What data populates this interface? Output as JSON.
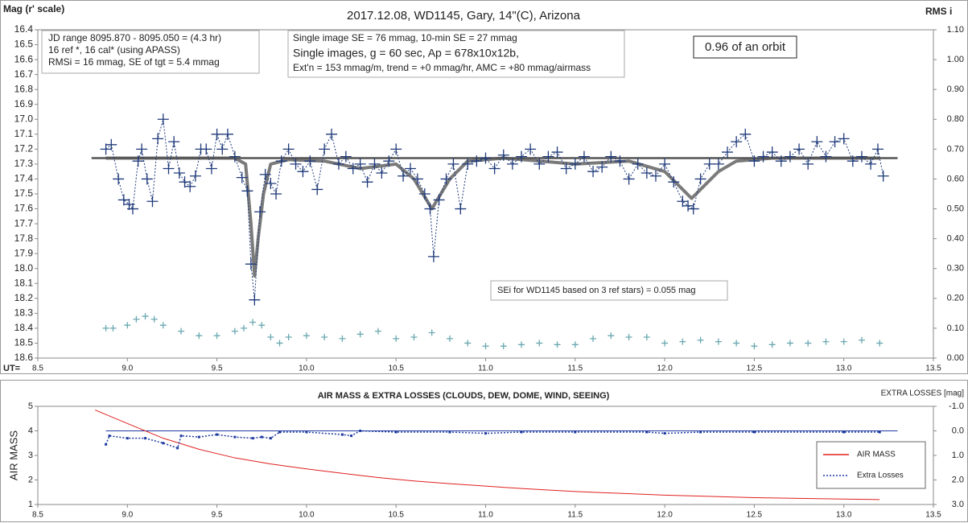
{
  "chart_data": [
    {
      "type": "line",
      "title": "2017.12.08,  WD1145, Gary, 14\"(C), Arizona",
      "y_label": "Mag (r' scale)",
      "y2_label": "RMS i",
      "x_label": "UT=",
      "xlim": [
        8.5,
        13.5
      ],
      "xticks": [
        8.5,
        {
          "value": 9,
          "label": "9.0"
        },
        9.5,
        {
          "value": 10,
          "label": "10.0"
        },
        10.5,
        {
          "value": 11,
          "label": "11.0"
        },
        11.5,
        {
          "value": 12,
          "label": "12.0"
        },
        12.5,
        {
          "value": 13,
          "label": "13.0"
        },
        13.5
      ],
      "ylim": [
        16.4,
        18.6
      ],
      "y_inverted": true,
      "yticks": [
        16.4,
        16.5,
        16.6,
        16.7,
        16.8,
        16.9,
        {
          "value": 17,
          "label": "17.0"
        },
        17.1,
        17.2,
        17.3,
        17.4,
        17.5,
        17.6,
        17.7,
        17.8,
        17.9,
        {
          "value": 18,
          "label": "18.0"
        },
        18.1,
        18.2,
        18.3,
        18.4,
        18.5,
        18.6
      ],
      "y2lim": [
        0,
        1.1
      ],
      "y2ticks": [
        {
          "value": 0,
          "label": "0.00"
        },
        {
          "value": 0.1,
          "label": "0.10"
        },
        {
          "value": 0.2,
          "label": "0.20"
        },
        {
          "value": 0.3,
          "label": "0.30"
        },
        {
          "value": 0.4,
          "label": "0.40"
        },
        {
          "value": 0.5,
          "label": "0.50"
        },
        {
          "value": 0.6,
          "label": "0.60"
        },
        {
          "value": 0.7,
          "label": "0.70"
        },
        {
          "value": 0.8,
          "label": "0.80"
        },
        {
          "value": 0.9,
          "label": "0.90"
        },
        {
          "value": 1,
          "label": "1.00"
        },
        {
          "value": 1.1,
          "label": "1.10"
        }
      ],
      "annotations": {
        "info": [
          "JD range  8095.870 - 8095.050  = (4.3 hr)",
          "16 ref *, 16 cal* (using APASS)",
          "RMSi = 16 mmag, SE of tgt = 5.4 mmag"
        ],
        "settings": [
          "Single image SE = 76 mmag, 10-min SE = 27 mmag",
          "Single images, g = 60 sec, Ap = 678x10x12b,",
          "Ext'n = 153 mmag/m, trend = +0 mmag/hr, AMC = +80 mmag/airmass"
        ],
        "orbit": "0.96 of an orbit",
        "sei": "SEi for WD1145 based on 3 ref stars) = 0.055 mag"
      },
      "series": [
        {
          "color": "#7a7a7a",
          "line_style": "solid",
          "line_width": 4,
          "x": [
            8.88,
            9.6,
            9.66,
            9.69,
            9.71,
            9.73,
            9.76,
            9.8,
            9.9,
            10.1,
            10.3,
            10.5,
            10.6,
            10.7,
            10.8,
            10.9,
            11.1,
            11.5,
            11.8,
            12.0,
            12.15,
            12.3,
            12.4,
            12.6,
            13.2
          ],
          "values": [
            17.26,
            17.26,
            17.3,
            17.7,
            18.05,
            17.8,
            17.5,
            17.3,
            17.27,
            17.28,
            17.33,
            17.3,
            17.4,
            17.6,
            17.4,
            17.28,
            17.26,
            17.3,
            17.28,
            17.35,
            17.53,
            17.35,
            17.28,
            17.26,
            17.26
          ]
        },
        {
          "color": "#555555",
          "line_style": "solid",
          "line_width": 2.5,
          "x": [
            8.8,
            13.3
          ],
          "values": [
            17.26,
            17.26
          ]
        },
        {
          "color": "#1f3a7a",
          "line_style": "dotted",
          "line_width": 1,
          "marker": "cross",
          "x": [
            8.88,
            8.91,
            8.95,
            8.98,
            9.01,
            9.03,
            9.06,
            9.08,
            9.11,
            9.14,
            9.17,
            9.2,
            9.23,
            9.26,
            9.29,
            9.32,
            9.35,
            9.38,
            9.41,
            9.44,
            9.47,
            9.5,
            9.53,
            9.56,
            9.6,
            9.64,
            9.67,
            9.69,
            9.71,
            9.74,
            9.77,
            9.8,
            9.83,
            9.86,
            9.9,
            9.94,
            9.98,
            10.02,
            10.06,
            10.1,
            10.14,
            10.18,
            10.22,
            10.26,
            10.3,
            10.34,
            10.38,
            10.42,
            10.46,
            10.5,
            10.54,
            10.58,
            10.62,
            10.66,
            10.69,
            10.71,
            10.74,
            10.78,
            10.82,
            10.86,
            10.9,
            10.95,
            11.0,
            11.05,
            11.1,
            11.15,
            11.2,
            11.25,
            11.3,
            11.35,
            11.4,
            11.45,
            11.5,
            11.55,
            11.6,
            11.65,
            11.7,
            11.75,
            11.8,
            11.85,
            11.9,
            11.95,
            12.0,
            12.05,
            12.1,
            12.13,
            12.16,
            12.2,
            12.25,
            12.3,
            12.35,
            12.4,
            12.45,
            12.5,
            12.55,
            12.6,
            12.65,
            12.7,
            12.75,
            12.8,
            12.85,
            12.9,
            12.95,
            13.0,
            13.05,
            13.1,
            13.15,
            13.19,
            13.22
          ],
          "values": [
            17.2,
            17.17,
            17.4,
            17.54,
            17.57,
            17.6,
            17.28,
            17.2,
            17.4,
            17.55,
            17.13,
            17.0,
            17.33,
            17.15,
            17.36,
            17.42,
            17.45,
            17.38,
            17.2,
            17.2,
            17.33,
            17.1,
            17.2,
            17.1,
            17.25,
            17.39,
            17.48,
            17.97,
            18.21,
            17.62,
            17.37,
            17.43,
            17.5,
            17.28,
            17.2,
            17.3,
            17.35,
            17.28,
            17.47,
            17.2,
            17.1,
            17.3,
            17.25,
            17.33,
            17.3,
            17.42,
            17.3,
            17.36,
            17.28,
            17.2,
            17.38,
            17.33,
            17.4,
            17.5,
            17.6,
            17.92,
            17.54,
            17.4,
            17.3,
            17.6,
            17.3,
            17.28,
            17.26,
            17.33,
            17.24,
            17.3,
            17.25,
            17.2,
            17.3,
            17.25,
            17.22,
            17.33,
            17.3,
            17.25,
            17.35,
            17.32,
            17.25,
            17.28,
            17.4,
            17.3,
            17.36,
            17.38,
            17.3,
            17.42,
            17.55,
            17.58,
            17.6,
            17.4,
            17.3,
            17.3,
            17.22,
            17.15,
            17.1,
            17.28,
            17.25,
            17.22,
            17.28,
            17.25,
            17.2,
            17.3,
            17.15,
            17.25,
            17.15,
            17.13,
            17.28,
            17.25,
            17.3,
            17.2,
            17.38
          ]
        },
        {
          "color": "#6aa8b0",
          "axis": "y2",
          "marker": "plus",
          "x": [
            8.88,
            8.92,
            9.0,
            9.05,
            9.1,
            9.15,
            9.2,
            9.3,
            9.4,
            9.5,
            9.6,
            9.65,
            9.7,
            9.75,
            9.8,
            9.85,
            9.9,
            10.0,
            10.1,
            10.2,
            10.3,
            10.4,
            10.5,
            10.6,
            10.7,
            10.8,
            10.9,
            11.0,
            11.1,
            11.2,
            11.3,
            11.4,
            11.5,
            11.6,
            11.7,
            11.8,
            11.9,
            12.0,
            12.1,
            12.2,
            12.3,
            12.4,
            12.5,
            12.6,
            12.7,
            12.8,
            12.9,
            13.0,
            13.1,
            13.2
          ],
          "values": [
            0.1,
            0.1,
            0.11,
            0.13,
            0.14,
            0.13,
            0.11,
            0.09,
            0.075,
            0.075,
            0.09,
            0.1,
            0.12,
            0.11,
            0.07,
            0.05,
            0.07,
            0.075,
            0.07,
            0.065,
            0.08,
            0.09,
            0.065,
            0.07,
            0.085,
            0.065,
            0.05,
            0.04,
            0.04,
            0.045,
            0.05,
            0.045,
            0.045,
            0.065,
            0.075,
            0.07,
            0.07,
            0.05,
            0.055,
            0.06,
            0.055,
            0.05,
            0.04,
            0.045,
            0.05,
            0.05,
            0.055,
            0.055,
            0.06,
            0.05
          ]
        }
      ]
    },
    {
      "type": "line",
      "title": "AIR MASS & EXTRA LOSSES (CLOUDS, DEW, DOME, WIND, SEEING)",
      "y_label": "AIR MASS",
      "y2_label": "EXTRA LOSSES [mag]",
      "xlim": [
        8.5,
        13.5
      ],
      "xticks": [
        8.5,
        {
          "value": 9,
          "label": "9.0"
        },
        9.5,
        {
          "value": 10,
          "label": "10.0"
        },
        10.5,
        {
          "value": 11,
          "label": "11.0"
        },
        11.5,
        {
          "value": 12,
          "label": "12.0"
        },
        12.5,
        {
          "value": 13,
          "label": "13.0"
        },
        13.5
      ],
      "ylim": [
        1,
        5
      ],
      "yticks": [
        1,
        2,
        3,
        4,
        5
      ],
      "y2lim": [
        -1,
        3
      ],
      "y2_inverted": true,
      "y2ticks": [
        {
          "value": -1,
          "label": "-1.0"
        },
        {
          "value": 0,
          "label": "0.0"
        },
        {
          "value": 1,
          "label": "1.0"
        },
        {
          "value": 2,
          "label": "2.0"
        },
        {
          "value": 3,
          "label": "3.0"
        }
      ],
      "legend": "lower right",
      "series": [
        {
          "color": "#1f3aa0",
          "axis": "y2",
          "line_style": "solid",
          "line_width": 1,
          "x": [
            8.88,
            13.3
          ],
          "values": [
            0,
            0
          ]
        },
        {
          "name": "AIR MASS",
          "color": "#e02020",
          "line_style": "solid",
          "line_width": 1,
          "x": [
            8.82,
            9.0,
            9.2,
            9.4,
            9.6,
            9.8,
            10.0,
            10.2,
            10.4,
            10.6,
            10.8,
            11.0,
            11.2,
            11.5,
            12.0,
            12.5,
            13.0,
            13.2
          ],
          "values": [
            4.85,
            4.3,
            3.7,
            3.25,
            2.9,
            2.65,
            2.45,
            2.27,
            2.1,
            1.96,
            1.85,
            1.75,
            1.65,
            1.53,
            1.38,
            1.28,
            1.22,
            1.2
          ]
        },
        {
          "name": "Extra Losses",
          "color": "#1f3aa0",
          "axis": "y2",
          "line_style": "dotted",
          "line_width": 1.5,
          "marker": "dot",
          "x": [
            8.88,
            8.9,
            9.0,
            9.1,
            9.2,
            9.28,
            9.3,
            9.4,
            9.5,
            9.6,
            9.7,
            9.75,
            9.8,
            9.85,
            10.0,
            10.2,
            10.25,
            10.3,
            10.5,
            10.8,
            11.0,
            11.2,
            11.5,
            11.9,
            12.0,
            12.2,
            12.5,
            13.0,
            13.2
          ],
          "values": [
            0.55,
            0.2,
            0.3,
            0.3,
            0.5,
            0.7,
            0.2,
            0.25,
            0.15,
            0.25,
            0.3,
            0.25,
            0.3,
            0.05,
            0.05,
            0.15,
            0.2,
            0,
            0.05,
            0.05,
            0.1,
            0.05,
            0.05,
            0.05,
            0.1,
            0.05,
            0.05,
            0.05,
            0.05
          ]
        }
      ]
    }
  ]
}
